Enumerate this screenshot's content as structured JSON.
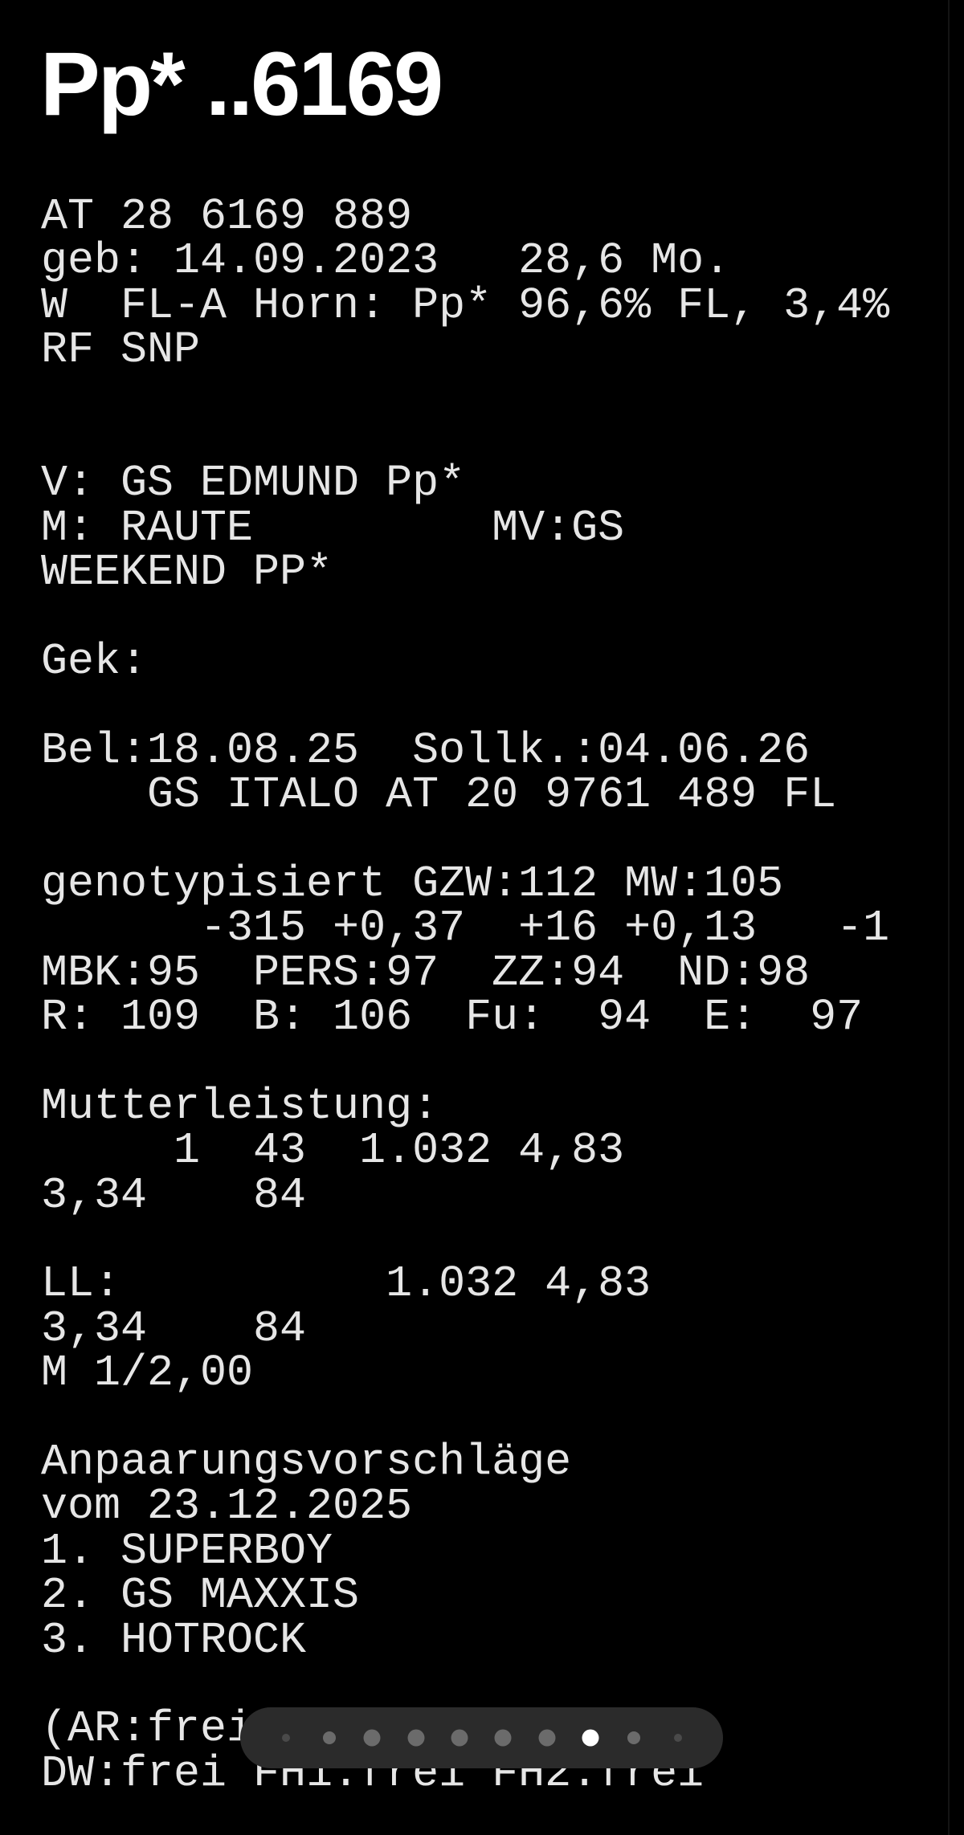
{
  "header": {
    "title": "Pp* ..6169"
  },
  "content": {
    "lines": [
      "AT 28 6169 889",
      "geb: 14.09.2023   28,6 Mo.",
      "W  FL-A Horn: Pp* 96,6% FL, 3,4%",
      "RF SNP",
      "",
      "",
      "V: GS EDMUND Pp*",
      "M: RAUTE         MV:GS",
      "WEEKEND PP*",
      "",
      "Gek:",
      "",
      "Bel:18.08.25  Sollk.:04.06.26",
      "    GS ITALO AT 20 9761 489 FL",
      "",
      "genotypisiert GZW:112 MW:105",
      "      -315 +0,37  +16 +0,13   -1",
      "MBK:95  PERS:97  ZZ:94  ND:98",
      "R: 109  B: 106  Fu:  94  E:  97",
      "",
      "Mutterleistung:",
      "     1  43  1.032 4,83",
      "3,34    84",
      "",
      "LL:          1.032 4,83",
      "3,34    84",
      "M 1/2,00",
      "",
      "Anpaarungsvorschläge",
      "vom 23.12.2025",
      "1. SUPERBOY",
      "2. GS MAXXIS",
      "3. HOTROCK",
      "",
      "(AR:frei",
      "DW:frei FH1:frei FH2:frei"
    ]
  },
  "pager": {
    "page_count": 10,
    "active_page": 8,
    "colors": {
      "background": "#2b2b2b",
      "active": "#ffffff",
      "inactive": "#6b6b6b",
      "edge": "#4a4a4a"
    }
  }
}
